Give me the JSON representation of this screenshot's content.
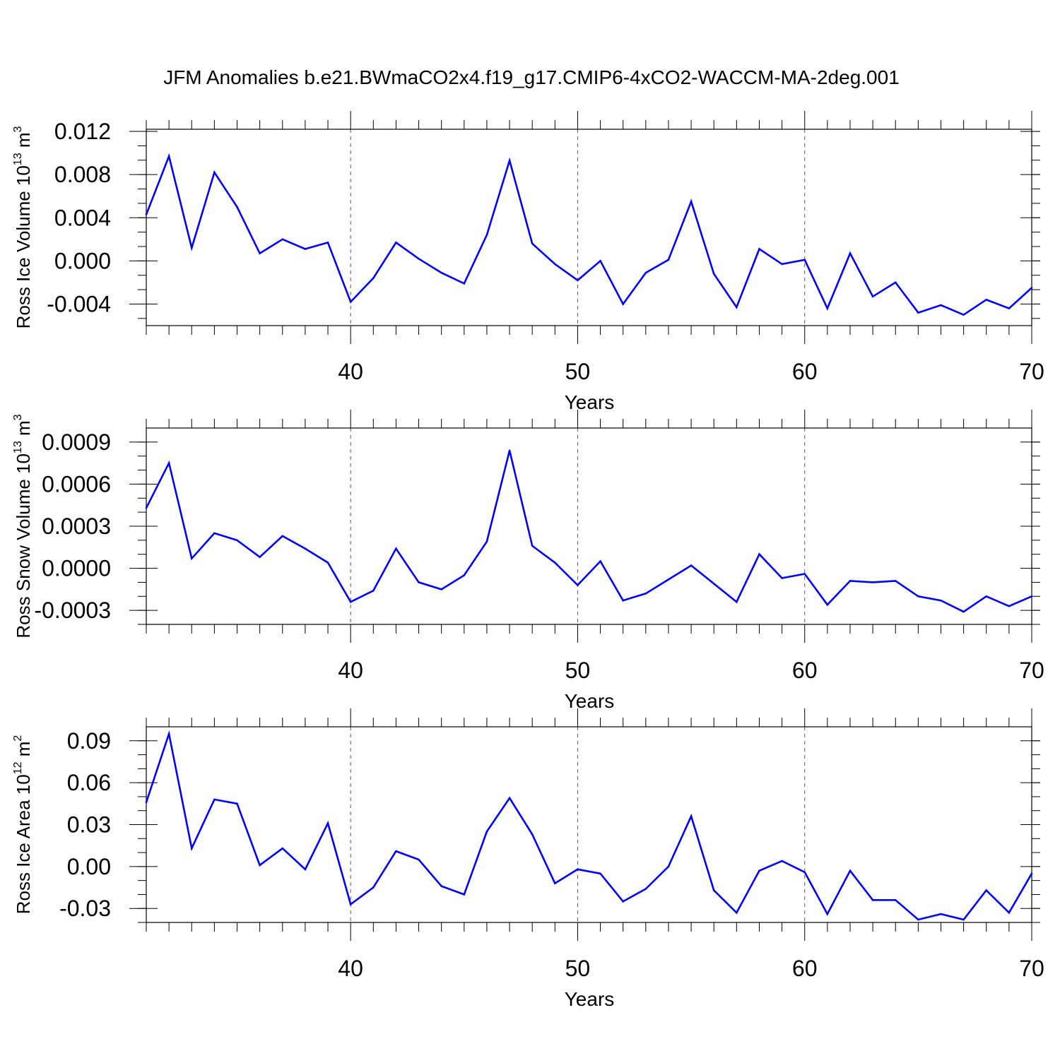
{
  "title": "JFM Anomalies b.e21.BWmaCO2x4.f19_g17.CMIP6-4xCO2-WACCM-MA-2deg.001",
  "chart_data": [
    {
      "type": "line",
      "ylabel": {
        "main": "Ross Ice Volume 10",
        "sup": "13",
        "unit": " m",
        "unit_sup": "3"
      },
      "xlabel": "Years",
      "xlim": [
        31,
        70
      ],
      "ylim": [
        -0.006,
        0.0122
      ],
      "xticks": [
        "40",
        "50",
        "60",
        "70"
      ],
      "yticks": [
        "0.012",
        "0.008",
        "0.004",
        "0.000",
        "-0.004"
      ],
      "grid": "dashed-vertical",
      "color": "#0000ff",
      "x": [
        31,
        32,
        33,
        34,
        35,
        36,
        37,
        38,
        39,
        40,
        41,
        42,
        43,
        44,
        45,
        46,
        47,
        48,
        49,
        50,
        51,
        52,
        53,
        54,
        55,
        56,
        57,
        58,
        59,
        60,
        61,
        62,
        63,
        64,
        65,
        66,
        67,
        68,
        69,
        70
      ],
      "values": [
        0.0043,
        0.0097,
        0.0012,
        0.0082,
        0.005,
        0.0007,
        0.002,
        0.0011,
        0.0017,
        -0.0038,
        -0.0016,
        0.0017,
        0.0002,
        -0.0011,
        -0.0021,
        0.0024,
        0.0093,
        0.0016,
        -0.0003,
        -0.0018,
        0.0,
        -0.004,
        -0.0011,
        0.0001,
        0.0055,
        -0.0012,
        -0.0043,
        0.0011,
        -0.0003,
        0.0001,
        -0.0044,
        0.0007,
        -0.0033,
        -0.002,
        -0.0048,
        -0.0041,
        -0.005,
        -0.0036,
        -0.0044,
        -0.0025
      ]
    },
    {
      "type": "line",
      "ylabel": {
        "main": "Ross Snow Volume 10",
        "sup": "13",
        "unit": " m",
        "unit_sup": "3"
      },
      "xlabel": "Years",
      "xlim": [
        31,
        70
      ],
      "ylim": [
        -0.0004,
        0.001
      ],
      "xticks": [
        "40",
        "50",
        "60",
        "70"
      ],
      "yticks": [
        "0.0009",
        "0.0006",
        "0.0003",
        "0.0000",
        "-0.0003"
      ],
      "grid": "dashed-vertical",
      "color": "#0000ff",
      "x": [
        31,
        32,
        33,
        34,
        35,
        36,
        37,
        38,
        39,
        40,
        41,
        42,
        43,
        44,
        45,
        46,
        47,
        48,
        49,
        50,
        51,
        52,
        53,
        54,
        55,
        56,
        57,
        58,
        59,
        60,
        61,
        62,
        63,
        64,
        65,
        66,
        67,
        68,
        69,
        70
      ],
      "values": [
        0.00043,
        0.00075,
        7e-05,
        0.00025,
        0.0002,
        8e-05,
        0.00023,
        0.00014,
        4e-05,
        -0.00024,
        -0.00016,
        0.00014,
        -0.0001,
        -0.00015,
        -5e-05,
        0.00019,
        0.00084,
        0.00016,
        4e-05,
        -0.00012,
        5e-05,
        -0.00023,
        -0.00018,
        -8e-05,
        2e-05,
        -0.00011,
        -0.00024,
        0.0001,
        -7e-05,
        -4e-05,
        -0.00026,
        -9e-05,
        -0.0001,
        -9e-05,
        -0.0002,
        -0.00023,
        -0.00031,
        -0.0002,
        -0.00027,
        -0.0002
      ]
    },
    {
      "type": "line",
      "ylabel": {
        "main": "Ross Ice Area 10",
        "sup": "12",
        "unit": " m",
        "unit_sup": "2"
      },
      "xlabel": "Years",
      "xlim": [
        31,
        70
      ],
      "ylim": [
        -0.04,
        0.1
      ],
      "xticks": [
        "40",
        "50",
        "60",
        "70"
      ],
      "yticks": [
        "0.09",
        "0.06",
        "0.03",
        "0.00",
        "-0.03"
      ],
      "grid": "dashed-vertical",
      "color": "#0000ff",
      "x": [
        31,
        32,
        33,
        34,
        35,
        36,
        37,
        38,
        39,
        40,
        41,
        42,
        43,
        44,
        45,
        46,
        47,
        48,
        49,
        50,
        51,
        52,
        53,
        54,
        55,
        56,
        57,
        58,
        59,
        60,
        61,
        62,
        63,
        64,
        65,
        66,
        67,
        68,
        69,
        70
      ],
      "values": [
        0.046,
        0.095,
        0.013,
        0.048,
        0.045,
        0.001,
        0.013,
        -0.002,
        0.031,
        -0.027,
        -0.015,
        0.011,
        0.005,
        -0.014,
        -0.02,
        0.025,
        0.049,
        0.023,
        -0.012,
        -0.002,
        -0.005,
        -0.025,
        -0.016,
        0.0,
        0.036,
        -0.017,
        -0.033,
        -0.003,
        0.004,
        -0.004,
        -0.034,
        -0.003,
        -0.024,
        -0.024,
        -0.038,
        -0.034,
        -0.038,
        -0.017,
        -0.033,
        -0.005
      ]
    }
  ]
}
